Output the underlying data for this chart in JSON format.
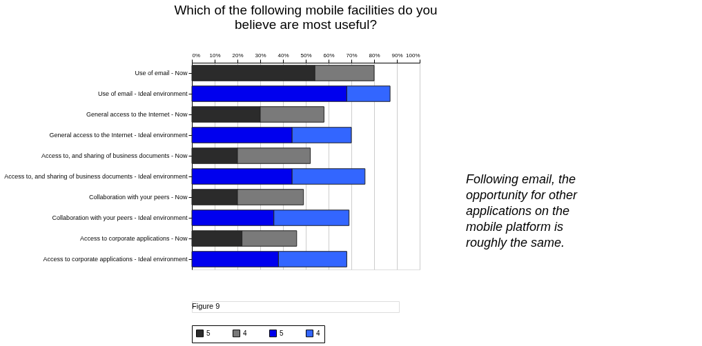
{
  "chart_data": {
    "type": "bar",
    "orientation": "horizontal",
    "stacked": true,
    "title": "Which of the following mobile facilities do you believe are most useful?",
    "categories": [
      "Use of email - Now",
      "Use of email - Ideal environment",
      "General access to the Internet - Now",
      "General access to the Internet - Ideal environment",
      "Access to, and sharing of business documents - Now",
      "Access to, and sharing of business documents - Ideal environment",
      "Collaboration with your peers - Now",
      "Collaboration with your peers - Ideal environment",
      "Access to corporate applications - Now",
      "Access to corporate applications - Ideal environment"
    ],
    "series": [
      {
        "name": "5",
        "color": "#2b2b2b",
        "values": [
          54,
          null,
          30,
          null,
          20,
          null,
          20,
          null,
          22,
          null
        ]
      },
      {
        "name": "4",
        "color": "#7a7a7a",
        "values": [
          26,
          null,
          28,
          null,
          32,
          null,
          29,
          null,
          24,
          null
        ]
      },
      {
        "name": "5",
        "color": "#0000ee",
        "values": [
          null,
          68,
          null,
          44,
          null,
          44,
          null,
          36,
          null,
          38
        ]
      },
      {
        "name": "4",
        "color": "#3366ff",
        "values": [
          null,
          19,
          null,
          26,
          null,
          32,
          null,
          33,
          null,
          30
        ]
      }
    ],
    "xlim": [
      0,
      100
    ],
    "xticks": [
      {
        "value": 0,
        "label": "0%"
      },
      {
        "value": 10,
        "label": "10%"
      },
      {
        "value": 20,
        "label": "20%"
      },
      {
        "value": 30,
        "label": "30%"
      },
      {
        "value": 40,
        "label": "40%"
      },
      {
        "value": 50,
        "label": "50%"
      },
      {
        "value": 60,
        "label": "60%"
      },
      {
        "value": 70,
        "label": "70%"
      },
      {
        "value": 80,
        "label": "80%"
      },
      {
        "value": 90,
        "label": "90%"
      },
      {
        "value": 100,
        "label": "100%"
      }
    ],
    "grid": "x",
    "legend": "bottom",
    "annotations": [
      "Following email, the opportunity for other applications on the mobile platform is roughly the same.",
      "Figure 9"
    ]
  }
}
